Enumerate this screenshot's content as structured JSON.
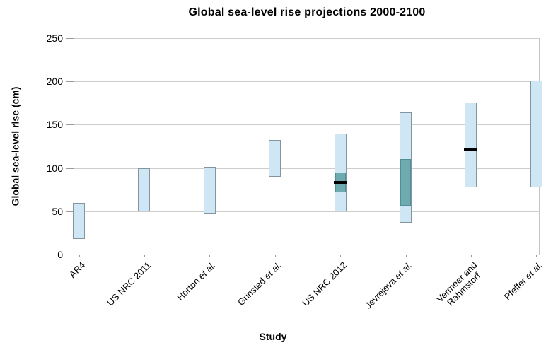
{
  "chart_data": {
    "type": "bar",
    "subtype": "floating_range_bars",
    "title": "Global sea-level rise projections 2000-2100",
    "xlabel": "Study",
    "ylabel": "Global sea-level rise (cm)",
    "units": "cm",
    "ylim": [
      0,
      250
    ],
    "yticks": [
      0,
      50,
      100,
      150,
      200,
      250
    ],
    "grid": true,
    "legend": "none",
    "categories": [
      "AR4",
      "US NRC 2011",
      "Horton et al.",
      "Grinsted et al.",
      "US NRC 2012",
      "Jevrejeva et al.",
      "Vermeer and Rahmstorf",
      "Pfeffer et al."
    ],
    "bars": [
      {
        "label": "AR4",
        "low": 18,
        "high": 60
      },
      {
        "label": "US NRC 2011",
        "low": 50,
        "high": 100
      },
      {
        "label": "Horton et al.",
        "low": 47,
        "high": 101
      },
      {
        "label": "Grinsted et al.",
        "low": 90,
        "high": 132
      },
      {
        "label": "US NRC 2012",
        "low": 50,
        "high": 140,
        "inner_low": 72,
        "inner_high": 95,
        "median": 83
      },
      {
        "label": "Jevrejeva et al.",
        "low": 37,
        "high": 164,
        "inner_low": 56,
        "inner_high": 110
      },
      {
        "label": "Vermeer and Rahmstorf",
        "label_lines": [
          "Vermeer and",
          "Rahmstorf"
        ],
        "low": 78,
        "high": 176,
        "median": 121
      },
      {
        "label": "Pfeffer et al.",
        "low": 78,
        "high": 201
      }
    ]
  },
  "colors": {
    "bar_fill": "#cfe7f5",
    "bar_border": "#8494a0",
    "inner_fill": "#6dabb0",
    "inner_border": "#4f8f96",
    "median_line": "#000000",
    "gridline": "#cdcdcd",
    "axis_line": "#8c8c8c",
    "text": "#000000",
    "background": "#ffffff"
  }
}
